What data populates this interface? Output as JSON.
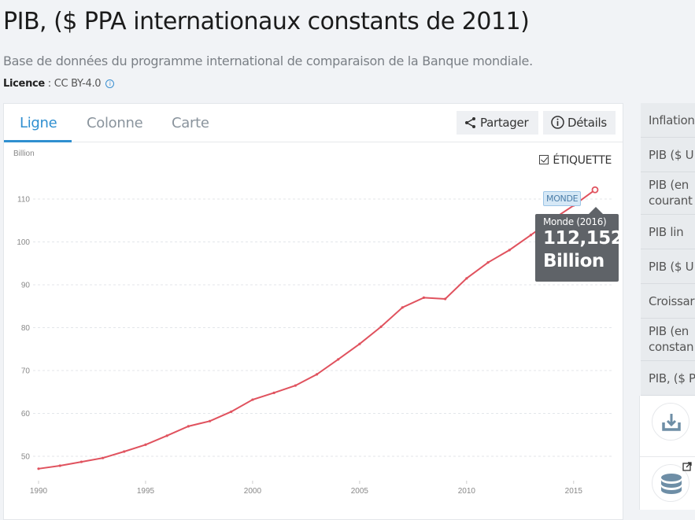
{
  "header": {
    "title": "PIB, ($ PPA internationaux constants de 2011)",
    "subtitle": "Base de données du programme international de comparaison de la Banque mondiale.",
    "licence_label": "Licence",
    "licence_sep": " : ",
    "licence_value": "CC BY-4.0",
    "info_icon": "i"
  },
  "tabs": [
    {
      "label": "Ligne",
      "active": true
    },
    {
      "label": "Colonne",
      "active": false
    },
    {
      "label": "Carte",
      "active": false
    }
  ],
  "toolbar": {
    "share_label": "Partager",
    "details_label": "Détails",
    "etiquette_label": "ÉTIQUETTE",
    "etiquette_checked": true
  },
  "sidebar": {
    "items": [
      {
        "line1": "Inflation"
      },
      {
        "line1": "PIB ($ U"
      },
      {
        "line1": "PIB (en",
        "line2": "courant"
      },
      {
        "line1": "PIB lin"
      },
      {
        "line1": "PIB ($ U"
      },
      {
        "line1": "Croissar"
      },
      {
        "line1": "PIB (en",
        "line2": "constan"
      },
      {
        "line1": "PIB, ($ P"
      }
    ],
    "actions": [
      {
        "icon": "download-icon"
      },
      {
        "icon": "database-icon",
        "badge": "external-link-icon"
      }
    ]
  },
  "tooltip": {
    "label": "Monde (2016)",
    "value": "112,152",
    "unit": "Billion"
  },
  "chart_data": {
    "type": "line",
    "title": "PIB, ($ PPA internationaux constants de 2011)",
    "ylabel": "Billion",
    "xlabel": "",
    "x": [
      1990,
      1991,
      1992,
      1993,
      1994,
      1995,
      1996,
      1997,
      1998,
      1999,
      2000,
      2001,
      2002,
      2003,
      2004,
      2005,
      2006,
      2007,
      2008,
      2009,
      2010,
      2011,
      2012,
      2013,
      2014,
      2015,
      2016
    ],
    "series": [
      {
        "name": "MONDE",
        "color": "#e0525e",
        "values": [
          47.1,
          47.8,
          48.7,
          49.6,
          51.1,
          52.7,
          54.8,
          57.0,
          58.2,
          60.4,
          63.2,
          64.8,
          66.5,
          69.1,
          72.6,
          76.2,
          80.2,
          84.7,
          87.0,
          86.7,
          91.5,
          95.2,
          98.1,
          101.6,
          105.2,
          108.5,
          112.152
        ]
      }
    ],
    "yticks": [
      50,
      60,
      70,
      80,
      90,
      100,
      110
    ],
    "xticks": [
      1990,
      1995,
      2000,
      2005,
      2010,
      2015
    ],
    "ylim": [
      44,
      115
    ],
    "xlim": [
      1990,
      2016
    ],
    "grid": true,
    "legend": "none",
    "annotations": [
      {
        "text": "MONDE",
        "x": 2016,
        "y": 112.152
      }
    ]
  }
}
